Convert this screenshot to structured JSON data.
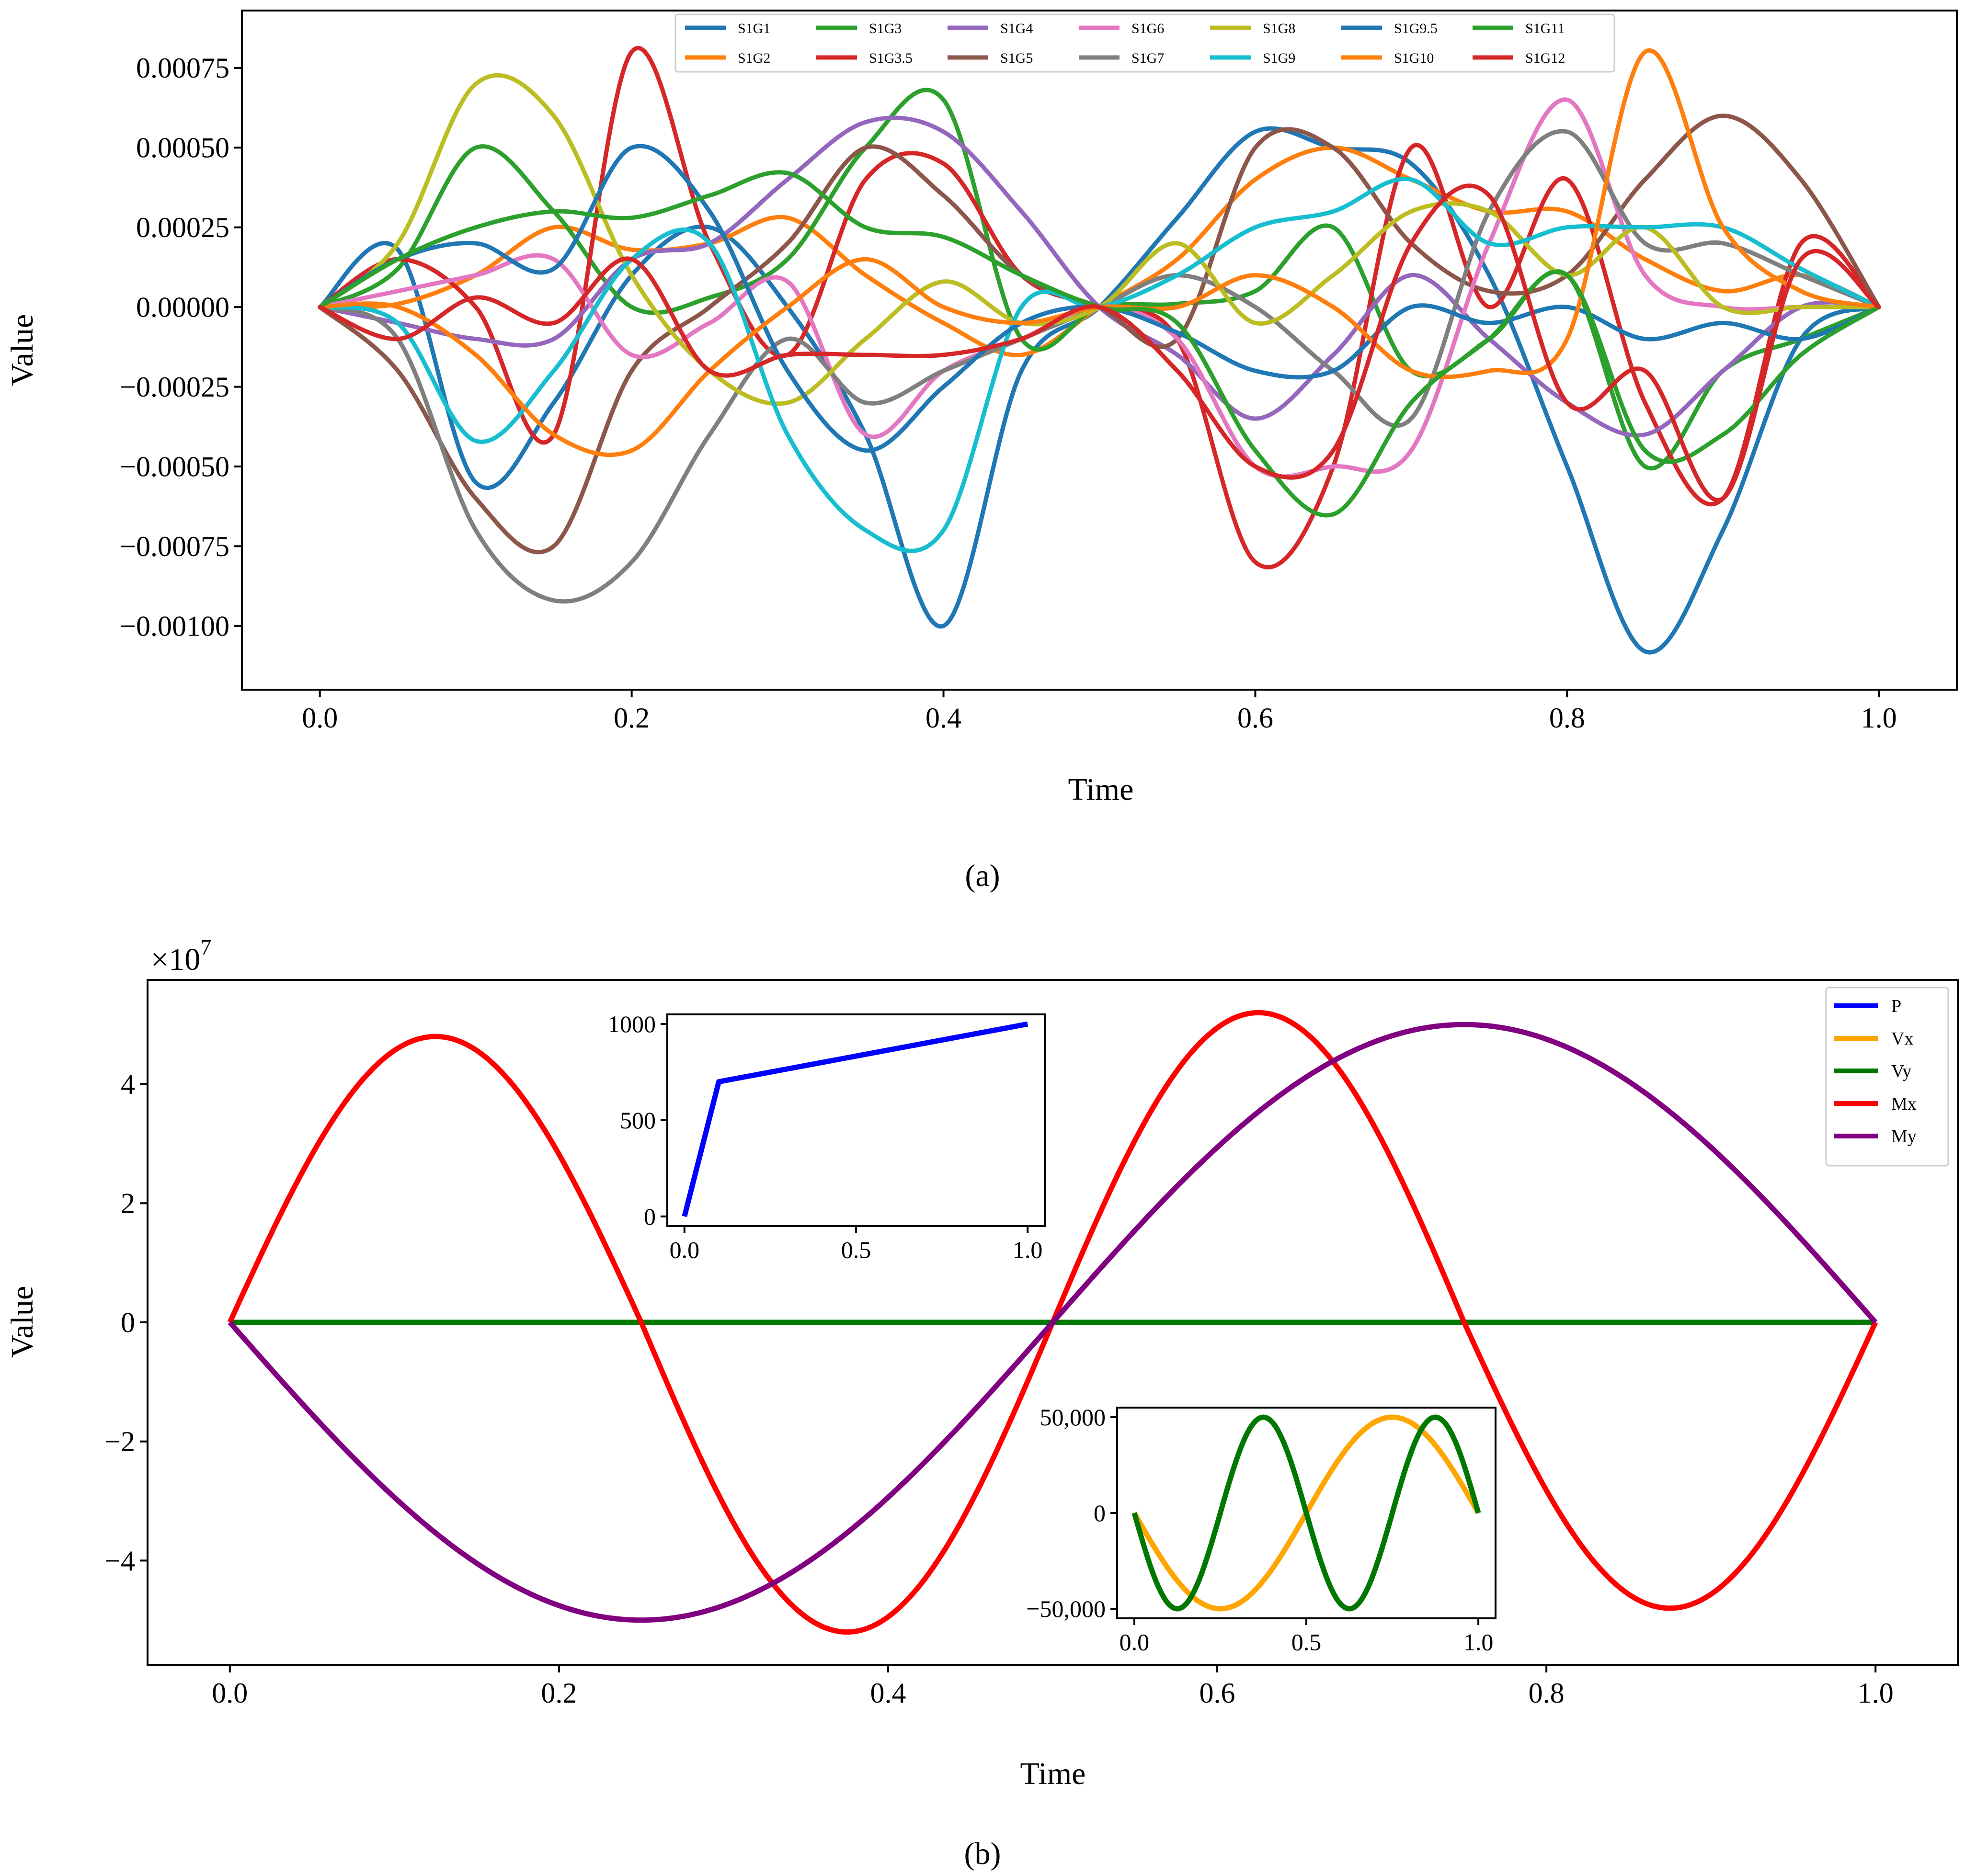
{
  "figure": {
    "caption_a": "(a)",
    "caption_b": "(b)"
  },
  "chart_data": [
    {
      "type": "line",
      "panel": "a",
      "xlabel": "Time",
      "ylabel": "Value",
      "xlim": [
        -0.05,
        1.05
      ],
      "ylim": [
        -0.0012,
        0.00093
      ],
      "xticks": [
        0.0,
        0.2,
        0.4,
        0.6,
        0.8,
        1.0
      ],
      "xtick_labels": [
        "0.0",
        "0.2",
        "0.4",
        "0.6",
        "0.8",
        "1.0"
      ],
      "yticks": [
        0.00075,
        0.0005,
        0.00025,
        0.0,
        -0.00025,
        -0.0005,
        -0.00075,
        -0.001
      ],
      "ytick_labels": [
        "0.00075",
        "0.00050",
        "0.00025",
        "0.00000",
        "−0.00025",
        "−0.00050",
        "−0.00075",
        "−0.00100"
      ],
      "legend_position": "top-center",
      "x": [
        0.0,
        0.05,
        0.1,
        0.15,
        0.2,
        0.25,
        0.3,
        0.35,
        0.4,
        0.45,
        0.5,
        0.55,
        0.6,
        0.65,
        0.7,
        0.75,
        0.8,
        0.85,
        0.9,
        0.95,
        1.0
      ],
      "series": [
        {
          "name": "S1G1",
          "color": "#1f77b4",
          "values": [
            0,
            0.00018,
            -0.00055,
            -0.0003,
            0.0001,
            0.00025,
            0.0,
            -0.0004,
            -0.001,
            -0.0002,
            0,
            0.00028,
            0.00055,
            0.0005,
            0.00045,
            0.0001,
            -0.0005,
            -0.00108,
            -0.0007,
            -0.0001,
            0
          ]
        },
        {
          "name": "S1G2",
          "color": "#ff7f0e",
          "values": [
            0,
            1e-05,
            0.0001,
            0.00025,
            0.00018,
            0.0002,
            0.00028,
            0.0001,
            -5e-05,
            -0.00015,
            0,
            0.00015,
            0.0004,
            0.0005,
            0.0004,
            0.0003,
            0.0003,
            0.00015,
            5e-05,
            0.0001,
            0
          ]
        },
        {
          "name": "S1G3",
          "color": "#2ca02c",
          "values": [
            0,
            0.00012,
            0.0005,
            0.0003,
            0.0,
            3e-05,
            0.00015,
            0.0005,
            0.00065,
            -0.0001,
            0,
            1e-05,
            5e-05,
            0.00025,
            -0.0002,
            -0.0001,
            0.0001,
            -0.0005,
            -0.0002,
            -0.0001,
            0
          ]
        },
        {
          "name": "S1G3.5",
          "color": "#d62728",
          "values": [
            0,
            0.00015,
            0.0,
            -0.0004,
            0.0008,
            0.0002,
            -0.00015,
            0.0004,
            0.00045,
            0.0001,
            0,
            -0.0001,
            -0.0008,
            -0.0005,
            0.0005,
            0.0,
            0.0004,
            -0.0003,
            -0.0006,
            0.0002,
            0
          ]
        },
        {
          "name": "S1G4",
          "color": "#9467bd",
          "values": [
            0,
            -5e-05,
            -0.0001,
            -0.0001,
            0.00015,
            0.0002,
            0.0004,
            0.00058,
            0.00055,
            0.0003,
            0,
            -0.00015,
            -0.00035,
            -0.00015,
            0.0001,
            -0.0001,
            -0.0003,
            -0.0004,
            -0.0002,
            0.0,
            0
          ]
        },
        {
          "name": "S1G5",
          "color": "#8c564b",
          "values": [
            0,
            -0.0002,
            -0.0006,
            -0.00075,
            -0.0002,
            0.0,
            0.0002,
            0.0005,
            0.00035,
            0.0001,
            0,
            -0.0001,
            0.0005,
            0.0005,
            0.0002,
            5e-05,
            0.0001,
            0.0004,
            0.0006,
            0.0004,
            0
          ]
        },
        {
          "name": "S1G6",
          "color": "#e377c2",
          "values": [
            0,
            5e-05,
            0.0001,
            0.00015,
            -0.00015,
            -5e-05,
            8e-05,
            -0.0004,
            -0.0002,
            -0.0001,
            0,
            -0.0001,
            -0.0005,
            -0.0005,
            -0.00045,
            0.0002,
            0.00065,
            0.0001,
            0.0,
            0.0,
            0
          ]
        },
        {
          "name": "S1G7",
          "color": "#7f7f7f",
          "values": [
            0,
            -0.0001,
            -0.0007,
            -0.00092,
            -0.0008,
            -0.0004,
            -0.0001,
            -0.0003,
            -0.0002,
            -0.0001,
            0,
            0.0001,
            0.0,
            -0.0002,
            -0.00035,
            0.0003,
            0.00055,
            0.0002,
            0.0002,
            0.0001,
            0
          ]
        },
        {
          "name": "S1G8",
          "color": "#bcbd22",
          "values": [
            0,
            0.0002,
            0.0007,
            0.0006,
            0.0001,
            -0.0002,
            -0.0003,
            -0.0001,
            8e-05,
            -5e-05,
            0,
            0.0002,
            -5e-05,
            0.0001,
            0.0003,
            0.0003,
            0.0001,
            0.00025,
            0.0,
            0.0,
            0
          ]
        },
        {
          "name": "S1G9",
          "color": "#17becf",
          "values": [
            0,
            -5e-05,
            -0.00042,
            -0.0002,
            0.00015,
            0.0002,
            -0.0004,
            -0.0007,
            -0.0007,
            0.0,
            0,
            0.0001,
            0.00025,
            0.0003,
            0.0004,
            0.0002,
            0.00025,
            0.00025,
            0.00025,
            0.00012,
            0
          ]
        },
        {
          "name": "S1G9.5",
          "color": "#1f77b4",
          "values": [
            0,
            0.00015,
            0.0002,
            0.00012,
            0.0005,
            0.0003,
            -0.0002,
            -0.00045,
            -0.00025,
            -5e-05,
            0,
            -8e-05,
            -0.0002,
            -0.0002,
            0.0,
            -5e-05,
            0.0,
            -0.0001,
            -5e-05,
            -0.0001,
            0
          ]
        },
        {
          "name": "S1G10",
          "color": "#ff7f0e",
          "values": [
            0,
            0.0,
            -0.00015,
            -0.0004,
            -0.00045,
            -0.0002,
            0.0,
            0.00015,
            0.0,
            -5e-05,
            0,
            0.0,
            0.0001,
            0.0,
            -0.0002,
            -0.0002,
            -0.0001,
            0.0008,
            0.00025,
            5e-05,
            0
          ]
        },
        {
          "name": "S1G11",
          "color": "#2ca02c",
          "values": [
            0,
            0.00015,
            0.00025,
            0.0003,
            0.00028,
            0.00035,
            0.00042,
            0.00025,
            0.00022,
            0.0001,
            0,
            -5e-05,
            -0.00045,
            -0.00065,
            -0.0003,
            -0.0001,
            0.0001,
            -0.00045,
            -0.0004,
            -0.00015,
            0
          ]
        },
        {
          "name": "S1G12",
          "color": "#d62728",
          "values": [
            0,
            -0.0001,
            3e-05,
            -5e-05,
            0.00015,
            -0.0002,
            -0.00015,
            -0.00015,
            -0.00015,
            -0.0001,
            0,
            -0.0002,
            -0.0005,
            -0.00045,
            0.0002,
            0.00035,
            -0.0003,
            -0.0002,
            -0.0006,
            0.00015,
            0
          ]
        }
      ]
    },
    {
      "type": "line",
      "panel": "b",
      "xlabel": "Time",
      "ylabel": "Value",
      "offset_text": "×10",
      "offset_exponent": "7",
      "xlim": [
        -0.05,
        1.05
      ],
      "ylim": [
        -57500000,
        57500000
      ],
      "xticks": [
        0.0,
        0.2,
        0.4,
        0.6,
        0.8,
        1.0
      ],
      "xtick_labels": [
        "0.0",
        "0.2",
        "0.4",
        "0.6",
        "0.8",
        "1.0"
      ],
      "yticks": [
        40000000,
        20000000,
        0,
        -20000000,
        -40000000
      ],
      "ytick_labels": [
        "4",
        "2",
        "0",
        "−2",
        "−4"
      ],
      "legend_position": "top-right",
      "series": [
        {
          "name": "P",
          "color": "#0000ff",
          "description": "near zero at this scale"
        },
        {
          "name": "Vx",
          "color": "#ffa500",
          "description": "near zero at this scale"
        },
        {
          "name": "Vy",
          "color": "#007700",
          "description": "near zero at this scale"
        },
        {
          "name": "Mx",
          "color": "#ff0000",
          "peaks": [
            [
              0.12,
              48000000
            ],
            [
              0.375,
              -52000000
            ],
            [
              0.625,
              52000000
            ],
            [
              0.875,
              -48000000
            ]
          ],
          "zero_crossings": [
            0.0,
            0.25,
            0.5,
            0.75,
            1.0
          ]
        },
        {
          "name": "My",
          "color": "#800080",
          "peaks": [
            [
              0.23,
              -50000000
            ],
            [
              0.77,
              50000000
            ]
          ],
          "zero_crossings": [
            0.0,
            0.5,
            1.0
          ]
        }
      ]
    },
    {
      "type": "line",
      "panel": "b-inset-top",
      "xlim": [
        -0.05,
        1.05
      ],
      "ylim": [
        -50,
        1050
      ],
      "xticks": [
        0.0,
        0.5,
        1.0
      ],
      "xtick_labels": [
        "0.0",
        "0.5",
        "1.0"
      ],
      "yticks": [
        1000,
        500,
        0
      ],
      "ytick_labels": [
        "1000",
        "500",
        "0"
      ],
      "series": [
        {
          "name": "P",
          "color": "#0000ff",
          "x": [
            0.0,
            0.1,
            1.0
          ],
          "values": [
            0,
            700,
            1000
          ]
        }
      ]
    },
    {
      "type": "line",
      "panel": "b-inset-bottom",
      "xlim": [
        -0.05,
        1.05
      ],
      "ylim": [
        -55000,
        55000
      ],
      "xticks": [
        0.0,
        0.5,
        1.0
      ],
      "xtick_labels": [
        "0.0",
        "0.5",
        "1.0"
      ],
      "yticks": [
        50000,
        0,
        -50000
      ],
      "ytick_labels": [
        "50,000",
        "0",
        "−50,000"
      ],
      "series": [
        {
          "name": "Vx",
          "color": "#ffa500",
          "function": "-50000*sin(2*pi*t)",
          "amplitude": 50000,
          "cycles": 1,
          "sign": -1
        },
        {
          "name": "Vy",
          "color": "#007700",
          "function": "-50000*sin(4*pi*t)",
          "amplitude": 50000,
          "cycles": 2,
          "sign": -1
        }
      ]
    }
  ]
}
